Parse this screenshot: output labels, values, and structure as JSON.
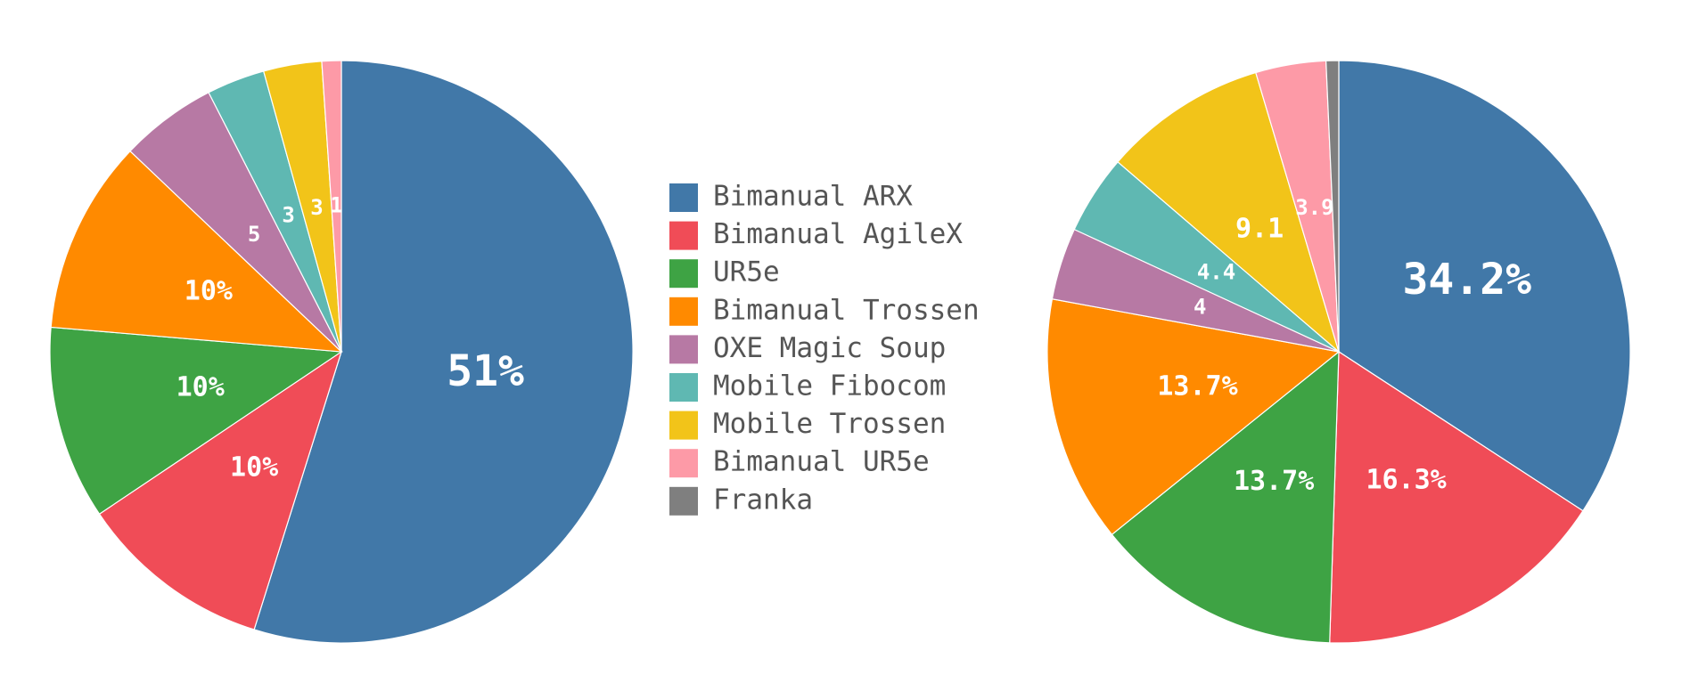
{
  "chart_data": [
    {
      "type": "pie",
      "categories": [
        "Bimanual ARX",
        "Bimanual AgileX",
        "UR5e",
        "Bimanual Trossen",
        "OXE Magic Soup",
        "Mobile Fibocom",
        "Mobile Trossen",
        "Bimanual UR5e",
        "Franka"
      ],
      "colors": [
        "#4178a8",
        "#f04c57",
        "#3ea344",
        "#ff8a00",
        "#b779a4",
        "#5fb8b2",
        "#f2c419",
        "#fd9aa7",
        "#7f7f7f"
      ],
      "values": [
        51,
        10,
        10,
        10,
        5,
        3,
        3,
        1,
        null
      ],
      "value_labels": [
        "51%",
        "10%",
        "10%",
        "10%",
        "5",
        "3",
        "3",
        "1",
        null
      ]
    },
    {
      "type": "pie",
      "values": [
        34.2,
        16.3,
        13.7,
        13.7,
        4,
        4.4,
        9.1,
        3.9,
        0.7
      ],
      "value_labels": [
        "34.2%",
        "16.3%",
        "13.7%",
        "13.7%",
        "4",
        "4.4",
        "9.1",
        "3.9",
        null
      ]
    }
  ]
}
